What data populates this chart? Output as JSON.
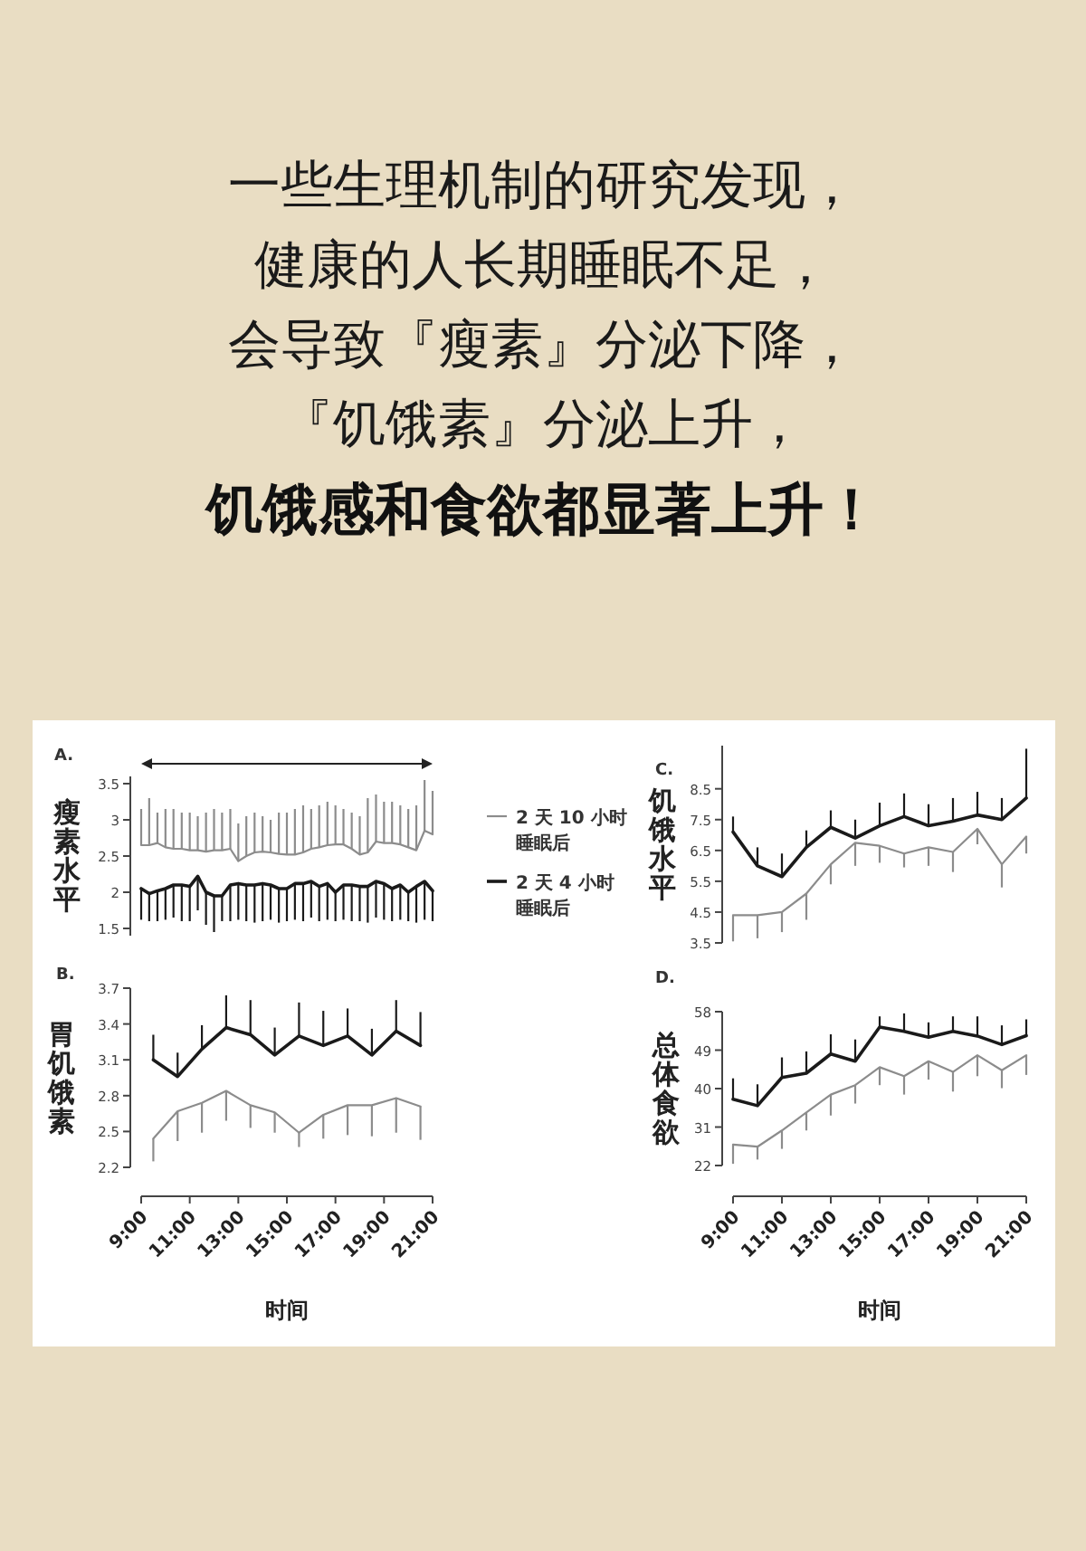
{
  "chart_data": [
    {
      "type": "line",
      "title": "一些生理机制的研究发现，健康的人长期睡眠不足，会导致『瘦素』分泌下降，『饥饿素』分泌上升，",
      "subtitle": "饥饿感和食欲都显著上升！",
      "annotations": [
        "A."
      ],
      "ylabel": "瘦素水平",
      "xlim": [
        9,
        21
      ],
      "ylim": [
        1.4,
        3.6
      ],
      "yticks": [
        1.5,
        2.0,
        2.5,
        3.0,
        3.5
      ],
      "tick_labels": "y",
      "legend": "right",
      "grid": false,
      "marker": "none",
      "x": [
        9,
        9.33,
        9.67,
        10,
        10.33,
        10.67,
        11,
        11.33,
        11.67,
        12,
        12.33,
        12.67,
        13,
        13.33,
        13.67,
        14,
        14.33,
        14.67,
        15,
        15.33,
        15.67,
        16,
        16.33,
        16.67,
        17,
        17.33,
        17.67,
        18,
        18.33,
        18.67,
        19,
        19.33,
        19.67,
        20,
        20.33,
        20.67,
        21
      ],
      "series": [
        {
          "name": "2 天 10 小时睡眠后",
          "color": "#8c8c8c",
          "values": [
            2.65,
            2.65,
            2.68,
            2.62,
            2.6,
            2.6,
            2.58,
            2.58,
            2.56,
            2.58,
            2.58,
            2.6,
            2.43,
            2.5,
            2.55,
            2.56,
            2.55,
            2.53,
            2.52,
            2.52,
            2.55,
            2.6,
            2.62,
            2.65,
            2.66,
            2.66,
            2.6,
            2.52,
            2.55,
            2.7,
            2.68,
            2.68,
            2.66,
            2.62,
            2.58,
            2.85,
            2.8
          ],
          "errors": [
            [
              2.65,
              3.15
            ],
            [
              2.65,
              3.3
            ],
            [
              2.68,
              3.1
            ],
            [
              2.62,
              3.15
            ],
            [
              2.6,
              3.15
            ],
            [
              2.6,
              3.1
            ],
            [
              2.58,
              3.1
            ],
            [
              2.58,
              3.05
            ],
            [
              2.56,
              3.1
            ],
            [
              2.58,
              3.15
            ],
            [
              2.58,
              3.1
            ],
            [
              2.6,
              3.15
            ],
            [
              2.43,
              2.95
            ],
            [
              2.5,
              3.05
            ],
            [
              2.55,
              3.1
            ],
            [
              2.56,
              3.05
            ],
            [
              2.55,
              3.0
            ],
            [
              2.53,
              3.1
            ],
            [
              2.52,
              3.1
            ],
            [
              2.52,
              3.15
            ],
            [
              2.55,
              3.2
            ],
            [
              2.6,
              3.15
            ],
            [
              2.62,
              3.2
            ],
            [
              2.65,
              3.25
            ],
            [
              2.66,
              3.2
            ],
            [
              2.66,
              3.15
            ],
            [
              2.6,
              3.1
            ],
            [
              2.52,
              3.05
            ],
            [
              2.55,
              3.3
            ],
            [
              2.7,
              3.35
            ],
            [
              2.68,
              3.25
            ],
            [
              2.68,
              3.25
            ],
            [
              2.66,
              3.2
            ],
            [
              2.62,
              3.15
            ],
            [
              2.58,
              3.2
            ],
            [
              2.85,
              3.55
            ],
            [
              2.8,
              3.4
            ]
          ]
        },
        {
          "name": "2 天 4 小时睡眠后",
          "color": "#1a1a1a",
          "values": [
            2.05,
            1.98,
            2.02,
            2.05,
            2.1,
            2.1,
            2.08,
            2.22,
            2.0,
            1.95,
            1.95,
            2.1,
            2.12,
            2.1,
            2.1,
            2.12,
            2.1,
            2.05,
            2.05,
            2.12,
            2.12,
            2.15,
            2.08,
            2.12,
            2.0,
            2.1,
            2.1,
            2.08,
            2.08,
            2.15,
            2.12,
            2.05,
            2.1,
            2.0,
            2.08,
            2.15,
            2.02
          ],
          "errors": [
            [
              1.62,
              2.05
            ],
            [
              1.6,
              1.98
            ],
            [
              1.6,
              2.02
            ],
            [
              1.62,
              2.05
            ],
            [
              1.65,
              2.1
            ],
            [
              1.6,
              2.1
            ],
            [
              1.6,
              2.08
            ],
            [
              1.75,
              2.22
            ],
            [
              1.55,
              2.0
            ],
            [
              1.45,
              1.95
            ],
            [
              1.6,
              1.95
            ],
            [
              1.6,
              2.1
            ],
            [
              1.62,
              2.12
            ],
            [
              1.6,
              2.1
            ],
            [
              1.58,
              2.1
            ],
            [
              1.6,
              2.12
            ],
            [
              1.62,
              2.1
            ],
            [
              1.58,
              2.05
            ],
            [
              1.6,
              2.05
            ],
            [
              1.62,
              2.12
            ],
            [
              1.6,
              2.12
            ],
            [
              1.65,
              2.15
            ],
            [
              1.6,
              2.08
            ],
            [
              1.62,
              2.12
            ],
            [
              1.6,
              2.0
            ],
            [
              1.62,
              2.1
            ],
            [
              1.6,
              2.1
            ],
            [
              1.6,
              2.08
            ],
            [
              1.58,
              2.08
            ],
            [
              1.65,
              2.15
            ],
            [
              1.62,
              2.12
            ],
            [
              1.6,
              2.05
            ],
            [
              1.62,
              2.1
            ],
            [
              1.6,
              2.0
            ],
            [
              1.58,
              2.08
            ],
            [
              1.62,
              2.15
            ],
            [
              1.6,
              2.02
            ]
          ]
        }
      ]
    },
    {
      "type": "line",
      "annotations": [
        "B."
      ],
      "ylabel": "胃饥饿素",
      "xlabel": "时间",
      "xlim": [
        9,
        21
      ],
      "xticks": [
        {
          "value": 9,
          "label": "9:00"
        },
        {
          "value": 11,
          "label": "11:00"
        },
        {
          "value": 13,
          "label": "13:00"
        },
        {
          "value": 15,
          "label": "15:00"
        },
        {
          "value": 17,
          "label": "17:00"
        },
        {
          "value": 19,
          "label": "19:00"
        },
        {
          "value": 21,
          "label": "21:00"
        }
      ],
      "ylim": [
        2.2,
        3.7
      ],
      "yticks": [
        2.2,
        2.5,
        2.8,
        3.1,
        3.4,
        3.7
      ],
      "grid": false,
      "marker": "none",
      "x": [
        9.5,
        10.5,
        11.5,
        12.5,
        13.5,
        14.5,
        15.5,
        16.5,
        17.5,
        18.5,
        19.5,
        20.5
      ],
      "series": [
        {
          "color": "#8c8c8c",
          "values": [
            2.44,
            2.67,
            2.74,
            2.84,
            2.72,
            2.66,
            2.49,
            2.64,
            2.72,
            2.72,
            2.78,
            2.71
          ],
          "errors": [
            [
              2.25,
              2.44
            ],
            [
              2.42,
              2.67
            ],
            [
              2.49,
              2.74
            ],
            [
              2.59,
              2.84
            ],
            [
              2.53,
              2.72
            ],
            [
              2.49,
              2.66
            ],
            [
              2.37,
              2.49
            ],
            [
              2.44,
              2.64
            ],
            [
              2.47,
              2.72
            ],
            [
              2.46,
              2.72
            ],
            [
              2.49,
              2.78
            ],
            [
              2.43,
              2.71
            ]
          ]
        },
        {
          "color": "#1a1a1a",
          "values": [
            3.1,
            2.96,
            3.19,
            3.37,
            3.31,
            3.14,
            3.3,
            3.22,
            3.3,
            3.14,
            3.34,
            3.22
          ],
          "errors": [
            [
              3.1,
              3.31
            ],
            [
              2.96,
              3.16
            ],
            [
              3.19,
              3.39
            ],
            [
              3.37,
              3.64
            ],
            [
              3.31,
              3.6
            ],
            [
              3.14,
              3.37
            ],
            [
              3.3,
              3.58
            ],
            [
              3.22,
              3.51
            ],
            [
              3.3,
              3.53
            ],
            [
              3.14,
              3.36
            ],
            [
              3.34,
              3.6
            ],
            [
              3.22,
              3.5
            ]
          ]
        }
      ]
    },
    {
      "type": "line",
      "annotations": [
        "C."
      ],
      "ylabel": "饥饿水平",
      "xlim": [
        9,
        21
      ],
      "ylim": [
        3.5,
        9.9
      ],
      "yticks": [
        3.5,
        4.5,
        5.5,
        6.5,
        7.5,
        8.5
      ],
      "tick_labels": "y",
      "grid": false,
      "marker": "none",
      "x": [
        9,
        10,
        11,
        12,
        13,
        14,
        15,
        16,
        17,
        18,
        19,
        20,
        21
      ],
      "series": [
        {
          "color": "#8c8c8c",
          "values": [
            4.4,
            4.4,
            4.5,
            5.1,
            6.05,
            6.75,
            6.65,
            6.4,
            6.6,
            6.45,
            7.2,
            6.05,
            6.95
          ],
          "errors": [
            [
              3.55,
              4.4
            ],
            [
              3.65,
              4.4
            ],
            [
              3.85,
              4.5
            ],
            [
              4.25,
              5.1
            ],
            [
              5.4,
              6.05
            ],
            [
              6.0,
              6.75
            ],
            [
              6.1,
              6.65
            ],
            [
              5.95,
              6.4
            ],
            [
              6.0,
              6.6
            ],
            [
              5.8,
              6.45
            ],
            [
              6.7,
              7.2
            ],
            [
              5.3,
              6.05
            ],
            [
              6.4,
              6.95
            ]
          ]
        },
        {
          "color": "#1a1a1a",
          "values": [
            7.1,
            6.0,
            5.65,
            6.6,
            7.25,
            6.9,
            7.3,
            7.6,
            7.3,
            7.45,
            7.65,
            7.5,
            8.2
          ],
          "errors": [
            [
              7.1,
              7.6
            ],
            [
              6.0,
              6.6
            ],
            [
              5.65,
              6.4
            ],
            [
              6.6,
              7.15
            ],
            [
              7.25,
              7.8
            ],
            [
              6.9,
              7.5
            ],
            [
              7.3,
              8.05
            ],
            [
              7.6,
              8.35
            ],
            [
              7.3,
              8.0
            ],
            [
              7.45,
              8.2
            ],
            [
              7.65,
              8.4
            ],
            [
              7.5,
              8.2
            ],
            [
              8.2,
              9.8
            ]
          ]
        }
      ]
    },
    {
      "type": "line",
      "annotations": [
        "D."
      ],
      "ylabel": "总体食欲",
      "xlabel": "时间",
      "xlim": [
        9,
        21
      ],
      "xticks": [
        {
          "value": 9,
          "label": "9:00"
        },
        {
          "value": 11,
          "label": "11:00"
        },
        {
          "value": 13,
          "label": "13:00"
        },
        {
          "value": 15,
          "label": "15:00"
        },
        {
          "value": 17,
          "label": "17:00"
        },
        {
          "value": 19,
          "label": "19:00"
        },
        {
          "value": 21,
          "label": "21:00"
        }
      ],
      "ylim": [
        22,
        58
      ],
      "yticks": [
        22,
        31,
        40,
        49,
        58
      ],
      "grid": false,
      "marker": "none",
      "x": [
        9,
        10,
        11,
        12,
        13,
        14,
        15,
        16,
        17,
        18,
        19,
        20,
        21
      ],
      "series": [
        {
          "color": "#8c8c8c",
          "values": [
            26.9,
            26.4,
            30.2,
            34.4,
            38.6,
            40.8,
            45.0,
            42.9,
            46.4,
            43.9,
            47.8,
            44.3,
            47.8
          ],
          "errors": [
            [
              22.4,
              26.9
            ],
            [
              23.4,
              26.4
            ],
            [
              25.9,
              30.2
            ],
            [
              30.2,
              34.4
            ],
            [
              33.7,
              38.6
            ],
            [
              36.5,
              40.8
            ],
            [
              40.8,
              45.0
            ],
            [
              38.6,
              42.9
            ],
            [
              42.1,
              46.4
            ],
            [
              39.3,
              43.9
            ],
            [
              42.9,
              47.8
            ],
            [
              40.1,
              44.3
            ],
            [
              43.2,
              47.8
            ]
          ]
        },
        {
          "color": "#1a1a1a",
          "values": [
            37.5,
            36.0,
            42.6,
            43.6,
            48.1,
            46.4,
            54.4,
            53.4,
            52.0,
            53.4,
            52.3,
            50.3,
            52.4
          ],
          "errors": [
            [
              37.5,
              42.4
            ],
            [
              36.0,
              41.0
            ],
            [
              42.6,
              47.3
            ],
            [
              43.6,
              48.7
            ],
            [
              48.1,
              52.7
            ],
            [
              46.4,
              51.5
            ],
            [
              54.4,
              56.9
            ],
            [
              53.4,
              57.6
            ],
            [
              52.0,
              55.5
            ],
            [
              53.4,
              56.9
            ],
            [
              52.3,
              56.9
            ],
            [
              50.3,
              54.8
            ],
            [
              52.4,
              56.2
            ]
          ]
        }
      ]
    }
  ]
}
